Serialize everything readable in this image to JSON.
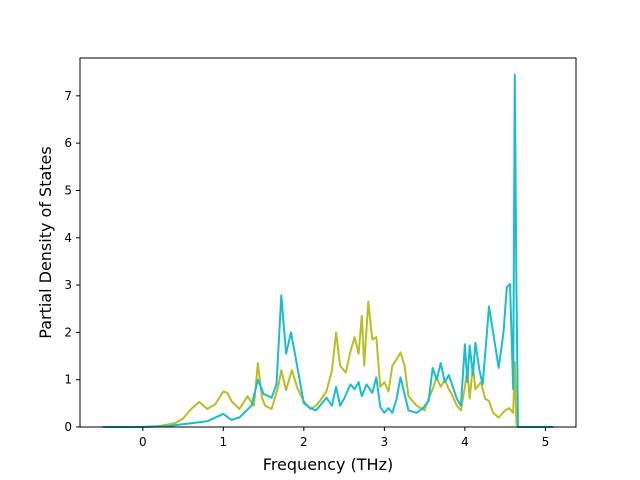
{
  "chart_data": {
    "type": "line",
    "title": "",
    "xlabel": "Frequency (THz)",
    "ylabel": "Partial Density of States",
    "xlim": [
      -0.78,
      5.38
    ],
    "ylim": [
      0,
      7.8
    ],
    "xticks": [
      0,
      1,
      2,
      3,
      4,
      5
    ],
    "yticks": [
      0,
      1,
      2,
      3,
      4,
      5,
      6,
      7
    ],
    "grid": false,
    "legend": "none",
    "series": [
      {
        "color": "#bcbd22",
        "points": [
          [
            -0.5,
            0
          ],
          [
            0.0,
            0.0
          ],
          [
            0.2,
            0.02
          ],
          [
            0.4,
            0.08
          ],
          [
            0.5,
            0.18
          ],
          [
            0.6,
            0.38
          ],
          [
            0.7,
            0.53
          ],
          [
            0.8,
            0.38
          ],
          [
            0.9,
            0.48
          ],
          [
            1.0,
            0.75
          ],
          [
            1.05,
            0.72
          ],
          [
            1.1,
            0.55
          ],
          [
            1.2,
            0.38
          ],
          [
            1.3,
            0.65
          ],
          [
            1.38,
            0.45
          ],
          [
            1.43,
            1.35
          ],
          [
            1.48,
            0.62
          ],
          [
            1.52,
            0.45
          ],
          [
            1.6,
            0.38
          ],
          [
            1.68,
            0.85
          ],
          [
            1.72,
            1.2
          ],
          [
            1.78,
            0.78
          ],
          [
            1.85,
            1.2
          ],
          [
            1.92,
            0.82
          ],
          [
            2.0,
            0.55
          ],
          [
            2.08,
            0.38
          ],
          [
            2.15,
            0.45
          ],
          [
            2.2,
            0.55
          ],
          [
            2.28,
            0.75
          ],
          [
            2.35,
            1.2
          ],
          [
            2.4,
            2.0
          ],
          [
            2.45,
            1.3
          ],
          [
            2.52,
            1.15
          ],
          [
            2.58,
            1.6
          ],
          [
            2.63,
            1.9
          ],
          [
            2.68,
            1.55
          ],
          [
            2.72,
            2.35
          ],
          [
            2.75,
            1.3
          ],
          [
            2.8,
            2.65
          ],
          [
            2.85,
            1.85
          ],
          [
            2.9,
            1.9
          ],
          [
            2.95,
            0.85
          ],
          [
            3.0,
            0.95
          ],
          [
            3.05,
            0.75
          ],
          [
            3.1,
            1.3
          ],
          [
            3.15,
            1.42
          ],
          [
            3.2,
            1.58
          ],
          [
            3.25,
            1.3
          ],
          [
            3.3,
            0.65
          ],
          [
            3.4,
            0.45
          ],
          [
            3.5,
            0.35
          ],
          [
            3.55,
            0.6
          ],
          [
            3.6,
            0.8
          ],
          [
            3.65,
            1.05
          ],
          [
            3.7,
            0.85
          ],
          [
            3.75,
            1.0
          ],
          [
            3.8,
            0.8
          ],
          [
            3.85,
            0.65
          ],
          [
            3.9,
            0.45
          ],
          [
            3.95,
            0.35
          ],
          [
            4.0,
            0.85
          ],
          [
            4.03,
            1.2
          ],
          [
            4.06,
            0.6
          ],
          [
            4.1,
            1.3
          ],
          [
            4.13,
            0.8
          ],
          [
            4.2,
            0.95
          ],
          [
            4.25,
            0.6
          ],
          [
            4.3,
            0.55
          ],
          [
            4.35,
            0.3
          ],
          [
            4.42,
            0.2
          ],
          [
            4.5,
            0.35
          ],
          [
            4.55,
            0.4
          ],
          [
            4.6,
            0.3
          ],
          [
            4.62,
            1.38
          ],
          [
            4.64,
            0.05
          ],
          [
            4.66,
            0.0
          ],
          [
            5.1,
            0
          ]
        ]
      },
      {
        "color": "#17becf",
        "points": [
          [
            -0.5,
            0
          ],
          [
            0.0,
            0.0
          ],
          [
            0.3,
            0.02
          ],
          [
            0.6,
            0.08
          ],
          [
            0.8,
            0.12
          ],
          [
            1.0,
            0.28
          ],
          [
            1.1,
            0.15
          ],
          [
            1.2,
            0.2
          ],
          [
            1.35,
            0.45
          ],
          [
            1.43,
            1.0
          ],
          [
            1.5,
            0.7
          ],
          [
            1.6,
            0.62
          ],
          [
            1.66,
            0.9
          ],
          [
            1.72,
            2.78
          ],
          [
            1.78,
            1.55
          ],
          [
            1.84,
            2.0
          ],
          [
            1.9,
            1.45
          ],
          [
            2.0,
            0.5
          ],
          [
            2.08,
            0.4
          ],
          [
            2.15,
            0.35
          ],
          [
            2.2,
            0.45
          ],
          [
            2.28,
            0.62
          ],
          [
            2.35,
            0.45
          ],
          [
            2.4,
            0.85
          ],
          [
            2.45,
            0.45
          ],
          [
            2.5,
            0.6
          ],
          [
            2.58,
            0.9
          ],
          [
            2.63,
            0.8
          ],
          [
            2.68,
            0.95
          ],
          [
            2.72,
            0.65
          ],
          [
            2.78,
            0.9
          ],
          [
            2.85,
            0.72
          ],
          [
            2.9,
            1.05
          ],
          [
            2.95,
            0.42
          ],
          [
            3.0,
            0.3
          ],
          [
            3.05,
            0.4
          ],
          [
            3.1,
            0.3
          ],
          [
            3.15,
            0.58
          ],
          [
            3.2,
            1.05
          ],
          [
            3.25,
            0.7
          ],
          [
            3.3,
            0.35
          ],
          [
            3.4,
            0.3
          ],
          [
            3.48,
            0.4
          ],
          [
            3.55,
            0.55
          ],
          [
            3.6,
            1.25
          ],
          [
            3.65,
            1.0
          ],
          [
            3.7,
            1.35
          ],
          [
            3.75,
            0.95
          ],
          [
            3.8,
            1.1
          ],
          [
            3.9,
            0.6
          ],
          [
            3.95,
            0.45
          ],
          [
            4.0,
            1.75
          ],
          [
            4.03,
            0.95
          ],
          [
            4.06,
            1.72
          ],
          [
            4.1,
            1.1
          ],
          [
            4.13,
            1.78
          ],
          [
            4.18,
            1.2
          ],
          [
            4.22,
            0.9
          ],
          [
            4.26,
            1.7
          ],
          [
            4.3,
            2.55
          ],
          [
            4.35,
            2.0
          ],
          [
            4.42,
            1.25
          ],
          [
            4.48,
            2.0
          ],
          [
            4.52,
            2.95
          ],
          [
            4.56,
            3.02
          ],
          [
            4.6,
            0.8
          ],
          [
            4.62,
            7.45
          ],
          [
            4.64,
            3.0
          ],
          [
            4.66,
            0.0
          ],
          [
            5.1,
            0
          ]
        ]
      }
    ]
  }
}
